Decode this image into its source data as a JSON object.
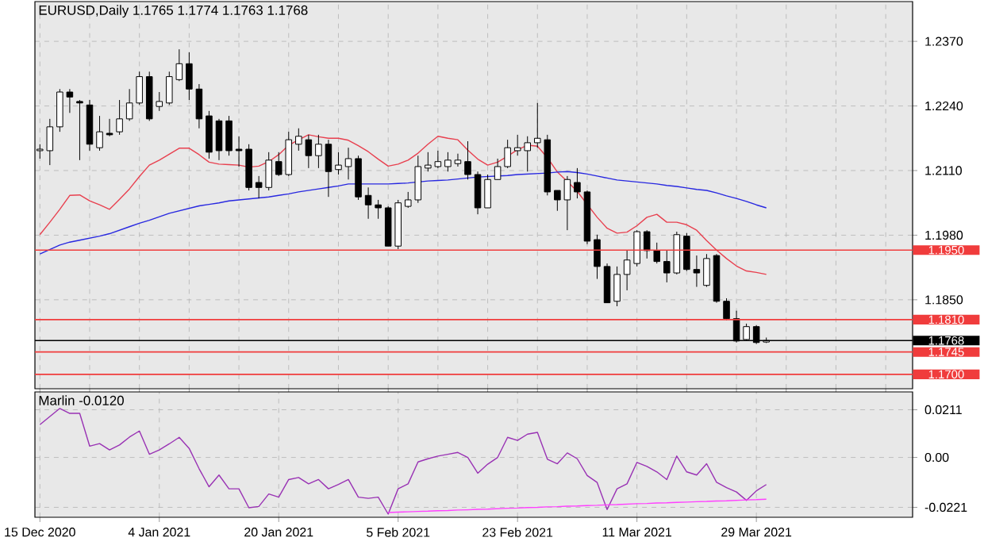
{
  "chart_data": [
    {
      "type": "candlestick",
      "title": "EURUSD,Daily 1.1765 1.1774 1.1763 1.1768",
      "categories": [
        null,
        null,
        null,
        null,
        null,
        null,
        null,
        null,
        null,
        null,
        null,
        null,
        null,
        null,
        null,
        null,
        null,
        null,
        null,
        null,
        null,
        null,
        null,
        null,
        null,
        null,
        null,
        null,
        null,
        null,
        null,
        null,
        null,
        null,
        null,
        null,
        null,
        null,
        null,
        null,
        null,
        null,
        null,
        null,
        null,
        null,
        null,
        null,
        null,
        null,
        null,
        null,
        null,
        null,
        null,
        null,
        null,
        null,
        null,
        null,
        null,
        null,
        null,
        null,
        null,
        null,
        null,
        null,
        null,
        null,
        null,
        null,
        null,
        null
      ],
      "ohlc": [
        [
          1.215,
          1.2163,
          1.2134,
          1.2153
        ],
        [
          1.215,
          1.2214,
          1.2121,
          1.2198
        ],
        [
          1.2198,
          1.2274,
          1.2188,
          1.2268
        ],
        [
          1.2268,
          1.2274,
          1.2226,
          1.2258
        ],
        [
          1.2249,
          1.2252,
          1.2131,
          1.2246
        ],
        [
          1.2242,
          1.2252,
          1.215,
          1.2163
        ],
        [
          1.2156,
          1.222,
          1.215,
          1.2188
        ],
        [
          1.2185,
          1.2214,
          1.2179,
          1.2182
        ],
        [
          1.2188,
          1.2252,
          1.2182,
          1.2214
        ],
        [
          1.2214,
          1.2274,
          1.221,
          1.2246
        ],
        [
          1.2246,
          1.2309,
          1.2242,
          1.2299
        ],
        [
          1.2299,
          1.2309,
          1.221,
          1.2214
        ],
        [
          1.2239,
          1.2268,
          1.223,
          1.2249
        ],
        [
          1.2246,
          1.2309,
          1.2242,
          1.2299
        ],
        [
          1.2293,
          1.2354,
          1.229,
          1.2325
        ],
        [
          1.2325,
          1.2348,
          1.2252,
          1.2274
        ],
        [
          1.2274,
          1.2284,
          1.2195,
          1.2214
        ],
        [
          1.222,
          1.223,
          1.2134,
          1.2147
        ],
        [
          1.221,
          1.2214,
          1.2131,
          1.215
        ],
        [
          1.221,
          1.222,
          1.214,
          1.215
        ],
        [
          1.2153,
          1.2179,
          1.2118,
          1.215
        ],
        [
          1.2153,
          1.2163,
          1.207,
          1.2076
        ],
        [
          1.2086,
          1.2099,
          1.2054,
          1.2076
        ],
        [
          1.2076,
          1.2147,
          1.207,
          1.2131
        ],
        [
          1.2128,
          1.2147,
          1.2099,
          1.2102
        ],
        [
          1.2102,
          1.2188,
          1.2099,
          1.2172
        ],
        [
          1.2163,
          1.2195,
          1.215,
          1.2179
        ],
        [
          1.2172,
          1.2182,
          1.2115,
          1.214
        ],
        [
          1.214,
          1.2182,
          1.2115,
          1.2163
        ],
        [
          1.2163,
          1.2172,
          1.2057,
          1.2108
        ],
        [
          1.2112,
          1.2147,
          1.2102,
          1.2121
        ],
        [
          1.2118,
          1.2156,
          1.2092,
          1.2134
        ],
        [
          1.2134,
          1.214,
          1.2051,
          1.2057
        ],
        [
          1.206,
          1.2076,
          1.2013,
          1.2041
        ],
        [
          1.2041,
          1.2051,
          1.2013,
          1.2035
        ],
        [
          1.2035,
          1.2038,
          1.1958,
          1.1958
        ],
        [
          1.1958,
          1.2051,
          1.1952,
          1.2045
        ],
        [
          1.2038,
          1.2067,
          1.2035,
          1.2051
        ],
        [
          1.2051,
          1.214,
          1.2045,
          1.2118
        ],
        [
          1.2115,
          1.2147,
          1.2108,
          1.2121
        ],
        [
          1.2118,
          1.215,
          1.2115,
          1.2128
        ],
        [
          1.2118,
          1.2147,
          1.2108,
          1.2131
        ],
        [
          1.2124,
          1.2144,
          1.2118,
          1.2131
        ],
        [
          1.2128,
          1.2169,
          1.2092,
          1.2102
        ],
        [
          1.2102,
          1.2108,
          1.2022,
          1.2035
        ],
        [
          1.2035,
          1.2102,
          1.2035,
          1.2092
        ],
        [
          1.2092,
          1.2134,
          1.2092,
          1.2118
        ],
        [
          1.2118,
          1.2172,
          1.2115,
          1.2156
        ],
        [
          1.215,
          1.2182,
          1.214,
          1.2156
        ],
        [
          1.215,
          1.2179,
          1.2108,
          1.2166
        ],
        [
          1.2166,
          1.2246,
          1.2156,
          1.2175
        ],
        [
          1.2172,
          1.2182,
          1.206,
          1.2067
        ],
        [
          1.207,
          1.207,
          1.2029,
          1.2051
        ],
        [
          1.2051,
          1.2099,
          1.199,
          1.2092
        ],
        [
          1.2086,
          1.2115,
          1.2054,
          1.2067
        ],
        [
          1.2067,
          1.207,
          1.1962,
          1.1968
        ],
        [
          1.1971,
          1.1981,
          1.1892,
          1.1917
        ],
        [
          1.1917,
          1.1923,
          1.1844,
          1.1844
        ],
        [
          1.1847,
          1.1917,
          1.1837,
          1.1901
        ],
        [
          1.1901,
          1.1949,
          1.1869,
          1.193
        ],
        [
          1.1923,
          1.199,
          1.1917,
          1.1987
        ],
        [
          1.1987,
          1.199,
          1.1933,
          1.1949
        ],
        [
          1.1949,
          1.1965,
          1.1923,
          1.1927
        ],
        [
          1.1927,
          1.1949,
          1.1885,
          1.1904
        ],
        [
          1.1904,
          1.1987,
          1.1901,
          1.1981
        ],
        [
          1.1978,
          1.1984,
          1.1908,
          1.1911
        ],
        [
          1.1911,
          1.1939,
          1.1876,
          1.1904
        ],
        [
          1.1879,
          1.1942,
          1.1876,
          1.1933
        ],
        [
          1.1939,
          1.1942,
          1.1844,
          1.1847
        ],
        [
          1.1847,
          1.1853,
          1.1809,
          1.1812
        ],
        [
          1.1812,
          1.1828,
          1.1764,
          1.1767
        ],
        [
          1.177,
          1.1802,
          1.1767,
          1.1796
        ],
        [
          1.1796,
          1.1799,
          1.1761,
          1.1764
        ],
        [
          1.1765,
          1.1774,
          1.1763,
          1.1768
        ]
      ],
      "series": [
        {
          "type": "line",
          "color": "#e8404f",
          "values": [
            1.1981,
            1.2006,
            1.2032,
            1.206,
            1.2061,
            1.2049,
            1.2041,
            1.2032,
            1.2052,
            1.2073,
            1.2098,
            1.2121,
            1.2131,
            1.2143,
            1.2155,
            1.2155,
            1.2142,
            1.2127,
            1.2123,
            1.2122,
            1.2121,
            1.2117,
            1.2119,
            1.2128,
            1.2142,
            1.2161,
            1.2172,
            1.2182,
            1.2178,
            1.2175,
            1.2175,
            1.2171,
            1.216,
            1.2148,
            1.2133,
            1.2119,
            1.2123,
            1.2131,
            1.2145,
            1.2163,
            1.2179,
            1.2175,
            1.2172,
            1.2151,
            1.2133,
            1.2121,
            1.2127,
            1.2139,
            1.2152,
            1.2161,
            1.2159,
            1.2136,
            1.2107,
            1.2088,
            1.2068,
            1.2042,
            1.2016,
            1.1994,
            1.1984,
            1.1986,
            1.1999,
            1.2016,
            1.2022,
            1.2006,
            1.2006,
            1.2001,
            1.199,
            1.1969,
            1.195,
            1.1933,
            1.1918,
            1.1908,
            1.1905,
            1.1901
          ]
        },
        {
          "type": "line",
          "color": "#2828e0",
          "values": [
            1.1942,
            1.1951,
            1.196,
            1.1966,
            1.197,
            1.1974,
            1.1978,
            1.1983,
            1.199,
            1.1997,
            1.2004,
            1.201,
            1.2017,
            1.2024,
            1.2029,
            1.2034,
            1.2039,
            1.2042,
            1.2045,
            1.2049,
            1.2051,
            1.2053,
            1.2055,
            1.2057,
            1.206,
            1.2063,
            1.2067,
            1.207,
            1.2073,
            1.2076,
            1.2079,
            1.2083,
            1.2083,
            1.2083,
            1.2083,
            1.2083,
            1.2084,
            1.2085,
            1.2087,
            1.2089,
            1.209,
            1.2091,
            1.2093,
            1.2095,
            1.2097,
            1.2098,
            1.2099,
            1.21,
            1.2102,
            1.2103,
            1.2104,
            1.2105,
            1.2107,
            1.2108,
            1.2106,
            1.2103,
            1.2099,
            1.2095,
            1.2091,
            1.2089,
            1.2087,
            1.2085,
            1.2083,
            1.208,
            1.2078,
            1.2075,
            1.2072,
            1.207,
            1.2065,
            1.2059,
            1.2054,
            1.2048,
            1.2041,
            1.2035
          ]
        }
      ],
      "ylim": [
        1.1671,
        1.245
      ],
      "yticks": [
        {
          "value": 1.185,
          "label": "1.1850"
        },
        {
          "value": 1.198,
          "label": "1.1980"
        },
        {
          "value": 1.211,
          "label": "1.2110"
        },
        {
          "value": 1.224,
          "label": "1.2240"
        },
        {
          "value": 1.237,
          "label": "1.2370"
        }
      ],
      "grid": true,
      "ref_lines": [
        {
          "axis": "y",
          "value": 1.195,
          "label": "1.1950",
          "color": "#f03c3c"
        },
        {
          "axis": "y",
          "value": 1.181,
          "label": "1.1810",
          "color": "#f03c3c"
        },
        {
          "axis": "y",
          "value": 1.1768,
          "label": "1.1768",
          "color": "#000000"
        },
        {
          "axis": "y",
          "value": 1.1745,
          "label": "1.1745",
          "color": "#f03c3c"
        },
        {
          "axis": "y",
          "value": 1.17,
          "label": "1.1700",
          "color": "#f03c3c"
        }
      ]
    },
    {
      "type": "line",
      "title": "Marlin -0.0120",
      "categories": [
        "15 Dec 2020",
        null,
        null,
        null,
        null,
        null,
        null,
        null,
        null,
        null,
        null,
        null,
        "4 Jan 2021",
        null,
        null,
        null,
        null,
        null,
        null,
        null,
        null,
        null,
        null,
        null,
        "20 Jan 2021",
        null,
        null,
        null,
        null,
        null,
        null,
        null,
        null,
        null,
        null,
        null,
        "5 Feb 2021",
        null,
        null,
        null,
        null,
        null,
        null,
        null,
        null,
        null,
        null,
        null,
        "23 Feb 2021",
        null,
        null,
        null,
        null,
        null,
        null,
        null,
        null,
        null,
        null,
        null,
        "11 Mar 2021",
        null,
        null,
        null,
        null,
        null,
        null,
        null,
        null,
        null,
        null,
        null,
        "29 Mar 2021",
        null
      ],
      "series": [
        {
          "color": "#9932b4",
          "values": [
            0.0145,
            0.0181,
            0.0217,
            0.0195,
            0.0195,
            0.005,
            0.0061,
            0.0033,
            0.0055,
            0.009,
            0.0117,
            0.0014,
            0.0033,
            0.006,
            0.0089,
            0.004,
            -0.005,
            -0.013,
            -0.0078,
            -0.0139,
            -0.0139,
            -0.0223,
            -0.0217,
            -0.0162,
            -0.0176,
            -0.0098,
            -0.0089,
            -0.0117,
            -0.0098,
            -0.0139,
            -0.012,
            -0.0098,
            -0.0176,
            -0.0181,
            -0.0176,
            -0.0251,
            -0.0139,
            -0.0117,
            -0.002,
            -0.0006,
            0.0006,
            0.0014,
            0.0022,
            0.0,
            -0.007,
            -0.003,
            0.0,
            0.0089,
            0.0075,
            0.0103,
            0.0111,
            -0.0008,
            -0.0028,
            0.002,
            -0.0006,
            -0.008,
            -0.0111,
            -0.0231,
            -0.0139,
            -0.0117,
            -0.0022,
            -0.004,
            -0.0064,
            -0.0098,
            0.0006,
            -0.0064,
            -0.0078,
            -0.0028,
            -0.011,
            -0.0134,
            -0.0153,
            -0.019,
            -0.0148,
            -0.012
          ]
        },
        {
          "color": "#ff40ff",
          "values": [
            null,
            null,
            null,
            null,
            null,
            null,
            null,
            null,
            null,
            null,
            null,
            null,
            null,
            null,
            null,
            null,
            null,
            null,
            null,
            null,
            null,
            null,
            null,
            null,
            null,
            null,
            null,
            null,
            null,
            null,
            null,
            null,
            null,
            null,
            null,
            -0.0244,
            -0.0242,
            -0.0241,
            -0.0239,
            -0.0238,
            -0.0236,
            -0.0235,
            -0.0233,
            -0.0232,
            -0.023,
            -0.0229,
            -0.0227,
            -0.0225,
            -0.0224,
            -0.0222,
            -0.0221,
            -0.0219,
            -0.0218,
            -0.0216,
            -0.0215,
            -0.0213,
            -0.0212,
            -0.021,
            -0.0209,
            -0.0207,
            -0.0205,
            -0.0204,
            -0.0202,
            -0.0201,
            -0.0199,
            -0.0198,
            -0.0196,
            -0.0195,
            -0.0193,
            -0.0192,
            -0.019,
            -0.0188,
            -0.0187,
            -0.0185
          ]
        }
      ],
      "ylim": [
        -0.0265,
        0.029
      ],
      "yticks": [
        {
          "value": -0.0221,
          "label": "-0.0221"
        },
        {
          "value": 0,
          "label": "0.00"
        },
        {
          "value": 0.0211,
          "label": "0.0211"
        }
      ],
      "grid": true
    }
  ]
}
